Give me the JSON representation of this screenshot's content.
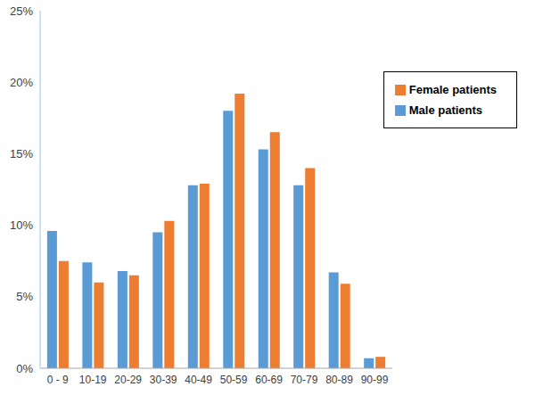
{
  "chart_data": {
    "type": "bar",
    "categories": [
      "0 - 9",
      "10-19",
      "20-29",
      "30-39",
      "40-49",
      "50-59",
      "60-69",
      "70-79",
      "80-89",
      "90-99"
    ],
    "series": [
      {
        "name": "Male  patients",
        "color": "#5b9bd5",
        "values": [
          9.6,
          7.4,
          6.8,
          9.5,
          12.8,
          18.0,
          15.3,
          12.8,
          6.7,
          0.7
        ]
      },
      {
        "name": "Female patients",
        "color": "#ed7d31",
        "values": [
          7.5,
          6.0,
          6.5,
          10.3,
          12.9,
          19.2,
          16.5,
          14.0,
          5.9,
          0.8
        ]
      }
    ],
    "ylim": [
      0,
      25
    ],
    "yticks": [
      {
        "value": 0,
        "label": "0%"
      },
      {
        "value": 5,
        "label": "5%"
      },
      {
        "value": 10,
        "label": "10%"
      },
      {
        "value": 15,
        "label": "15%"
      },
      {
        "value": 20,
        "label": "20%"
      },
      {
        "value": 25,
        "label": "25%"
      }
    ],
    "grid": false,
    "legend": "upper right"
  }
}
